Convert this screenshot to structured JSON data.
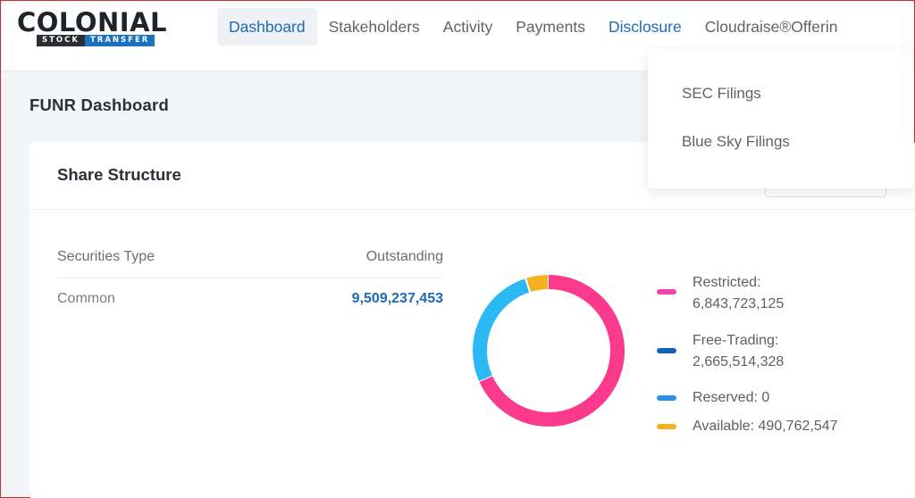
{
  "brand": {
    "main": "COLONIAL",
    "sub_left": "STOCK",
    "sub_right": "TRANSFER"
  },
  "nav": {
    "items": [
      {
        "label": "Dashboard"
      },
      {
        "label": "Stakeholders"
      },
      {
        "label": "Activity"
      },
      {
        "label": "Payments"
      },
      {
        "label": "Disclosure"
      },
      {
        "label": "Cloudraise®Offerin"
      }
    ]
  },
  "page": {
    "title": "FUNR Dashboard"
  },
  "share_structure": {
    "title": "Share Structure",
    "columns": [
      "Securities Type",
      "Outstanding"
    ],
    "rows": [
      {
        "type": "Common",
        "outstanding": "9,509,237,453"
      }
    ]
  },
  "legend": [
    {
      "label": "Restricted:",
      "value": "6,843,723,125",
      "color": "#f542b0"
    },
    {
      "label": "Free-Trading:",
      "value": "2,665,514,328",
      "color": "#1562b4"
    },
    {
      "label": "Reserved: 0",
      "value": "",
      "color": "#2e8fee"
    },
    {
      "label": "Available: 490,762,547",
      "value": "",
      "color": "#f5b120"
    }
  ],
  "chart_data": {
    "type": "pie",
    "donut": true,
    "categories": [
      "Restricted",
      "Free-Trading",
      "Reserved",
      "Available"
    ],
    "values": [
      6843723125,
      2665514328,
      0,
      490762547
    ],
    "colors": [
      "#fb3a8d",
      "#2ab9f5",
      "#2e8fee",
      "#f5b120"
    ]
  },
  "dropdown": {
    "items": [
      {
        "label": "SEC Filings"
      },
      {
        "label": "Blue Sky Filings"
      }
    ]
  },
  "select": {
    "chevron_icon": "chevron-down-icon"
  }
}
